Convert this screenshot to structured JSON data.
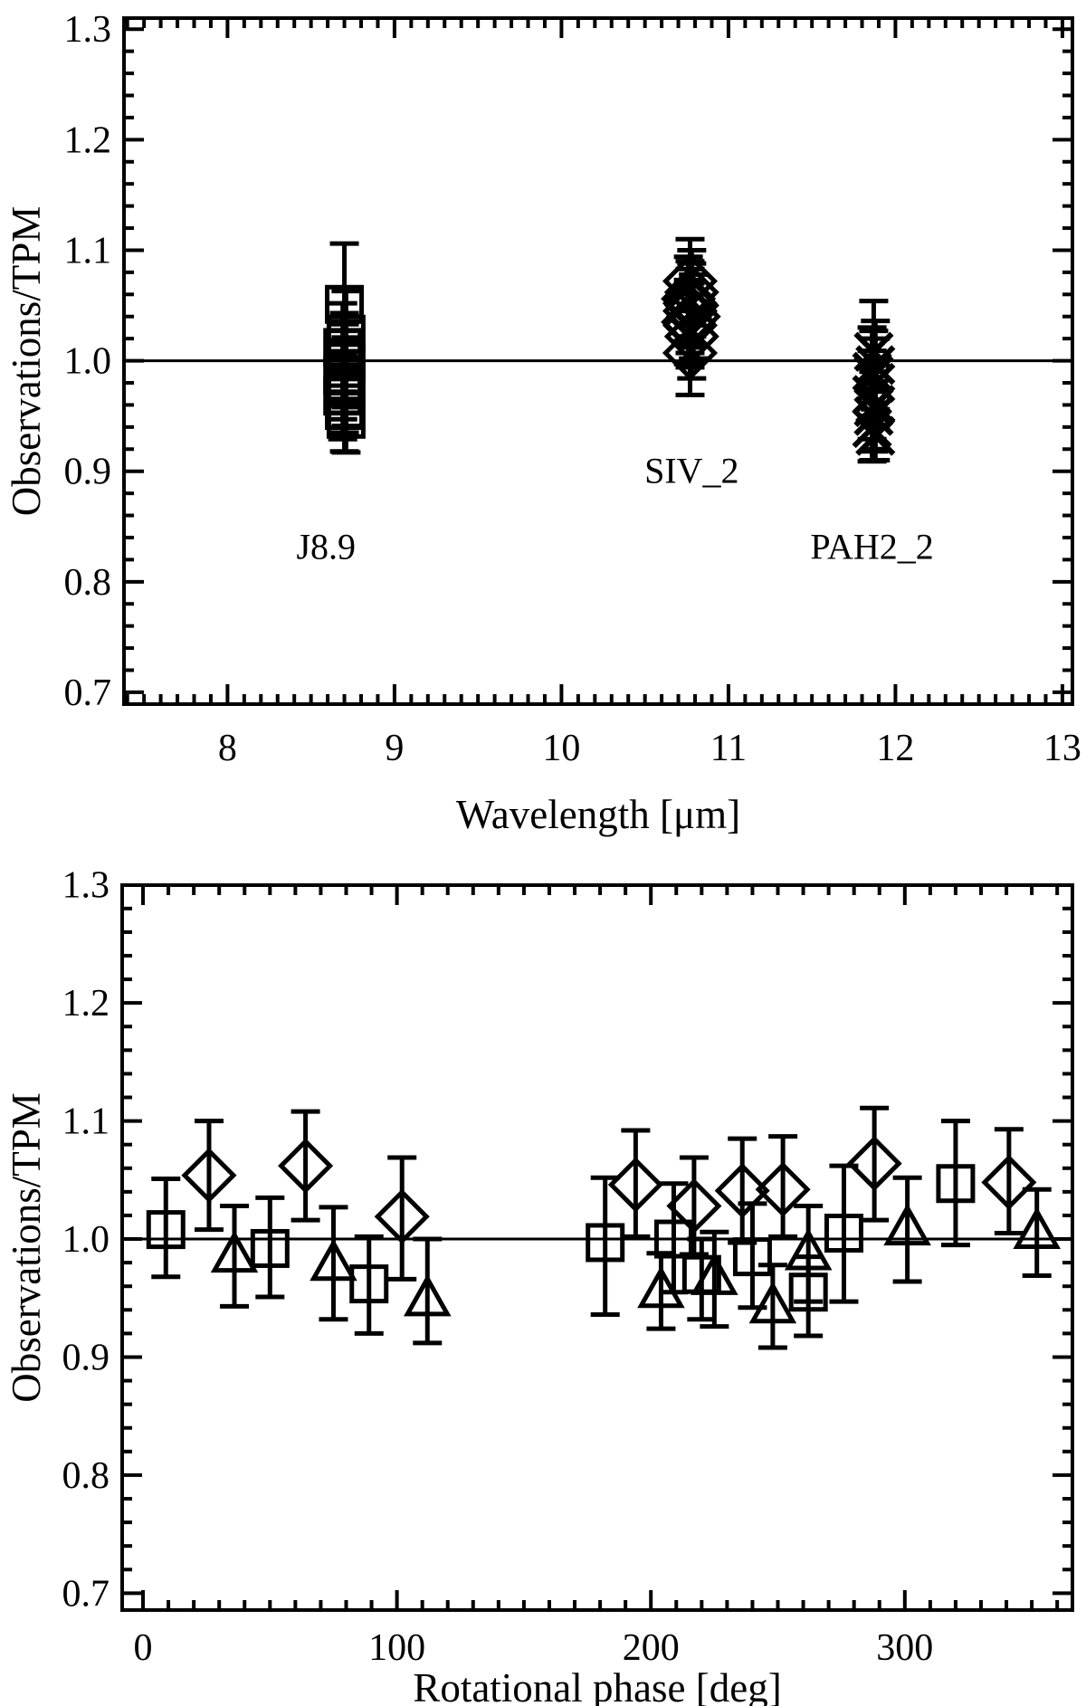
{
  "page": {
    "background": "#ffffff",
    "ink": "#000000"
  },
  "chart_data": [
    {
      "type": "scatter",
      "title": "",
      "xlabel": "Wavelength [μm]",
      "ylabel": "Observations/TPM",
      "xlim": [
        7.38,
        13.06
      ],
      "ylim": [
        0.6893,
        1.31
      ],
      "xticks": [
        {
          "v": 8,
          "label": "8"
        },
        {
          "v": 9,
          "label": "9"
        },
        {
          "v": 10,
          "label": "10"
        },
        {
          "v": 11,
          "label": "11"
        },
        {
          "v": 12,
          "label": "12"
        },
        {
          "v": 13,
          "label": "13"
        }
      ],
      "yticks": [
        {
          "v": 0.7,
          "label": "0.7"
        },
        {
          "v": 0.8,
          "label": "0.8"
        },
        {
          "v": 0.9,
          "label": "0.9"
        },
        {
          "v": 1.0,
          "label": "1.0"
        },
        {
          "v": 1.1,
          "label": "1.1"
        },
        {
          "v": 1.2,
          "label": "1.2"
        },
        {
          "v": 1.3,
          "label": "1.3"
        }
      ],
      "x_minor": 0.1,
      "y_minor": 0.02,
      "grid": false,
      "legend": "none",
      "reference_line_y": 1.0,
      "annotations": [
        {
          "text": "J8.9",
          "x": 8.59,
          "y": 0.832
        },
        {
          "text": "SIV_2",
          "x": 10.78,
          "y": 0.901
        },
        {
          "text": "PAH2_2",
          "x": 11.86,
          "y": 0.832
        }
      ],
      "series": [
        {
          "name": "J8.9 filter",
          "marker": "square",
          "points": [
            {
              "x": 8.7,
              "y": 1.051,
              "lo": 1.003,
              "hi": 1.106
            },
            {
              "x": 8.71,
              "y": 1.024,
              "lo": 0.985,
              "hi": 1.063
            },
            {
              "x": 8.69,
              "y": 1.012,
              "lo": 0.972,
              "hi": 1.052
            },
            {
              "x": 8.7,
              "y": 1.003,
              "lo": 0.963,
              "hi": 1.043
            },
            {
              "x": 8.71,
              "y": 0.999,
              "lo": 0.958,
              "hi": 1.04
            },
            {
              "x": 8.7,
              "y": 0.993,
              "lo": 0.953,
              "hi": 1.033
            },
            {
              "x": 8.69,
              "y": 0.987,
              "lo": 0.947,
              "hi": 1.027
            },
            {
              "x": 8.71,
              "y": 0.981,
              "lo": 0.941,
              "hi": 1.021
            },
            {
              "x": 8.7,
              "y": 0.975,
              "lo": 0.935,
              "hi": 1.015
            },
            {
              "x": 8.69,
              "y": 0.968,
              "lo": 0.929,
              "hi": 1.007
            },
            {
              "x": 8.7,
              "y": 0.955,
              "lo": 0.918,
              "hi": 0.993
            },
            {
              "x": 8.71,
              "y": 0.947,
              "lo": 0.917,
              "hi": 0.985
            }
          ]
        },
        {
          "name": "SIV_2 filter",
          "marker": "diamond",
          "points": [
            {
              "x": 10.77,
              "y": 1.072,
              "lo": 1.032,
              "hi": 1.11
            },
            {
              "x": 10.78,
              "y": 1.062,
              "lo": 1.022,
              "hi": 1.1
            },
            {
              "x": 10.76,
              "y": 1.056,
              "lo": 1.018,
              "hi": 1.094
            },
            {
              "x": 10.78,
              "y": 1.05,
              "lo": 1.012,
              "hi": 1.088
            },
            {
              "x": 10.77,
              "y": 1.045,
              "lo": 1.007,
              "hi": 1.083
            },
            {
              "x": 10.79,
              "y": 1.04,
              "lo": 1.002,
              "hi": 1.078
            },
            {
              "x": 10.76,
              "y": 1.035,
              "lo": 0.997,
              "hi": 1.073
            },
            {
              "x": 10.77,
              "y": 1.032,
              "lo": 0.994,
              "hi": 1.07
            },
            {
              "x": 10.78,
              "y": 1.022,
              "lo": 0.984,
              "hi": 1.06
            },
            {
              "x": 10.77,
              "y": 1.052,
              "lo": 1.014,
              "hi": 1.09
            },
            {
              "x": 10.77,
              "y": 1.007,
              "lo": 0.969,
              "hi": 1.045
            }
          ]
        },
        {
          "name": "PAH2_2 filter",
          "marker": "cross",
          "points": [
            {
              "x": 11.87,
              "y": 1.008,
              "lo": 0.962,
              "hi": 1.054
            },
            {
              "x": 11.88,
              "y": 0.996,
              "lo": 0.956,
              "hi": 1.036
            },
            {
              "x": 11.86,
              "y": 0.99,
              "lo": 0.95,
              "hi": 1.03
            },
            {
              "x": 11.87,
              "y": 0.987,
              "lo": 0.947,
              "hi": 1.027
            },
            {
              "x": 11.88,
              "y": 0.98,
              "lo": 0.94,
              "hi": 1.02
            },
            {
              "x": 11.86,
              "y": 0.969,
              "lo": 0.929,
              "hi": 1.009
            },
            {
              "x": 11.88,
              "y": 0.96,
              "lo": 0.92,
              "hi": 1.0
            },
            {
              "x": 11.87,
              "y": 0.95,
              "lo": 0.91,
              "hi": 0.99
            },
            {
              "x": 11.86,
              "y": 0.939,
              "lo": 0.909,
              "hi": 0.979
            },
            {
              "x": 11.88,
              "y": 0.932,
              "lo": 0.91,
              "hi": 0.972
            },
            {
              "x": 11.87,
              "y": 0.958,
              "lo": 0.918,
              "hi": 0.998
            }
          ]
        }
      ]
    },
    {
      "type": "scatter",
      "title": "",
      "xlabel": "Rotational phase [deg]",
      "ylabel": "Observations/TPM",
      "xlim": [
        -8.2,
        366
      ],
      "ylim": [
        0.6857,
        1.2998
      ],
      "xticks": [
        {
          "v": 0,
          "label": "0"
        },
        {
          "v": 100,
          "label": "100"
        },
        {
          "v": 200,
          "label": "200"
        },
        {
          "v": 300,
          "label": "300"
        }
      ],
      "yticks": [
        {
          "v": 0.7,
          "label": "0.7"
        },
        {
          "v": 0.8,
          "label": "0.8"
        },
        {
          "v": 0.9,
          "label": "0.9"
        },
        {
          "v": 1.0,
          "label": "1.0"
        },
        {
          "v": 1.1,
          "label": "1.1"
        },
        {
          "v": 1.2,
          "label": "1.2"
        },
        {
          "v": 1.3,
          "label": "1.3"
        }
      ],
      "x_minor": 10,
      "y_minor": 0.02,
      "grid": false,
      "legend": "none",
      "reference_line_y": 1.0,
      "annotations": [],
      "series": [
        {
          "name": "squares",
          "marker": "square",
          "points": [
            {
              "x": 9,
              "y": 1.008,
              "lo": 0.968,
              "hi": 1.051
            },
            {
              "x": 50,
              "y": 0.992,
              "lo": 0.951,
              "hi": 1.035
            },
            {
              "x": 89,
              "y": 0.962,
              "lo": 0.92,
              "hi": 1.002
            },
            {
              "x": 182,
              "y": 0.997,
              "lo": 0.936,
              "hi": 1.052
            },
            {
              "x": 209,
              "y": 1.0,
              "lo": 0.955,
              "hi": 1.047
            },
            {
              "x": 220,
              "y": 0.97,
              "lo": 0.932,
              "hi": 1.0
            },
            {
              "x": 240,
              "y": 0.985,
              "lo": 0.942,
              "hi": 1.03
            },
            {
              "x": 262,
              "y": 0.955,
              "lo": 0.918,
              "hi": 0.985
            },
            {
              "x": 276,
              "y": 1.005,
              "lo": 0.947,
              "hi": 1.062
            },
            {
              "x": 320,
              "y": 1.047,
              "lo": 0.995,
              "hi": 1.1
            }
          ]
        },
        {
          "name": "diamonds",
          "marker": "diamond",
          "points": [
            {
              "x": 26,
              "y": 1.054,
              "lo": 1.008,
              "hi": 1.1
            },
            {
              "x": 64,
              "y": 1.062,
              "lo": 1.016,
              "hi": 1.108
            },
            {
              "x": 102,
              "y": 1.019,
              "lo": 0.966,
              "hi": 1.069
            },
            {
              "x": 194,
              "y": 1.046,
              "lo": 1.002,
              "hi": 1.092
            },
            {
              "x": 217,
              "y": 1.028,
              "lo": 0.987,
              "hi": 1.069
            },
            {
              "x": 236,
              "y": 1.041,
              "lo": 0.997,
              "hi": 1.085
            },
            {
              "x": 252,
              "y": 1.042,
              "lo": 1.002,
              "hi": 1.087
            },
            {
              "x": 288,
              "y": 1.064,
              "lo": 1.016,
              "hi": 1.111
            },
            {
              "x": 341,
              "y": 1.048,
              "lo": 1.005,
              "hi": 1.093
            }
          ]
        },
        {
          "name": "triangles",
          "marker": "triangle",
          "points": [
            {
              "x": 36,
              "y": 0.985,
              "lo": 0.943,
              "hi": 1.028
            },
            {
              "x": 75,
              "y": 0.978,
              "lo": 0.932,
              "hi": 1.027
            },
            {
              "x": 112,
              "y": 0.948,
              "lo": 0.912,
              "hi": 1.0
            },
            {
              "x": 204,
              "y": 0.955,
              "lo": 0.924,
              "hi": 0.988
            },
            {
              "x": 225,
              "y": 0.966,
              "lo": 0.926,
              "hi": 1.006
            },
            {
              "x": 248,
              "y": 0.942,
              "lo": 0.908,
              "hi": 0.978
            },
            {
              "x": 262,
              "y": 0.987,
              "lo": 0.947,
              "hi": 1.028
            },
            {
              "x": 301,
              "y": 1.008,
              "lo": 0.964,
              "hi": 1.052
            },
            {
              "x": 352,
              "y": 1.005,
              "lo": 0.969,
              "hi": 1.042
            }
          ]
        }
      ]
    }
  ]
}
